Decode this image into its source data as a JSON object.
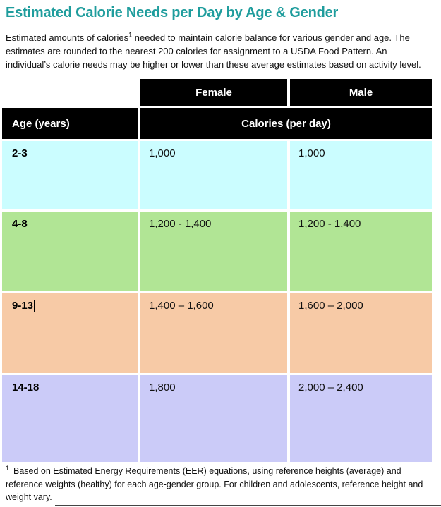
{
  "colors": {
    "title": "#1f9d9d",
    "header_bg": "#000000",
    "header_text": "#ffffff",
    "bottom_rule": "#454545"
  },
  "title": "Estimated Calorie Needs per Day by Age & Gender",
  "intro": {
    "before": "Estimated amounts of calories",
    "footnote_ref": "1",
    "after": " needed to maintain calorie balance for various gender and age. The estimates are rounded to the nearest 200 calories for assignment to a USDA Food Pattern. An individual’s calorie needs may be higher or lower than these average estimates based on activity level."
  },
  "table": {
    "female_header": "Female",
    "male_header": "Male",
    "age_header": "Age (years)",
    "calories_header": "Calories (per day)",
    "rows": [
      {
        "age": "2-3",
        "female": "1,000",
        "male": "1,000",
        "color": "#cbfdff"
      },
      {
        "age": "4-8",
        "female": "1,200 - 1,400",
        "male": "1,200 - 1,400",
        "color": "#b1e595"
      },
      {
        "age": "9-13",
        "female": "1,400 – 1,600",
        "male": "1,600 – 2,000",
        "color": "#f7caa6"
      },
      {
        "age": "14-18",
        "female": "1,800",
        "male": "2,000 – 2,400",
        "color": "#cbcbf8"
      }
    ]
  },
  "footnote": {
    "sup": "1.",
    "text": " Based on Estimated Energy Requirements (EER) equations, using reference heights (average) and reference weights (healthy) for each age-gender group. For children and adolescents, reference height and weight vary."
  }
}
